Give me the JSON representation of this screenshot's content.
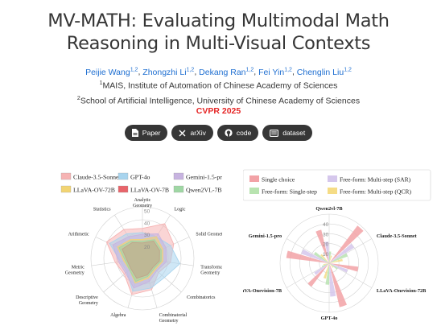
{
  "title": {
    "line1": "MV-MATH: Evaluating Multimodal Math",
    "line2": "Reasoning in Multi-Visual Contexts"
  },
  "authors": [
    {
      "name": "Peijie Wang",
      "sup": "1,2"
    },
    {
      "name": "Zhongzhi Li",
      "sup": "1,2"
    },
    {
      "name": "Dekang Ran",
      "sup": "1,2"
    },
    {
      "name": "Fei Yin",
      "sup": "1,2"
    },
    {
      "name": "Chenglin Liu",
      "sup": "1,2"
    }
  ],
  "affiliations": [
    {
      "sup": "1",
      "text": "MAIS, Institute of Automation of Chinese Academy of Sciences"
    },
    {
      "sup": "2",
      "text": "School of Artificial Intelligence, University of Chinese Academy of Sciences"
    }
  ],
  "venue": "CVPR 2025",
  "links": [
    {
      "label": "Paper",
      "icon": "pdf-icon"
    },
    {
      "label": "arXiv",
      "icon": "x-icon"
    },
    {
      "label": "code",
      "icon": "github-icon"
    },
    {
      "label": "dataset",
      "icon": "database-icon"
    }
  ],
  "colors": {
    "accent": "#1f6fd1",
    "venue": "#e52424",
    "button": "#363636"
  },
  "chart_data": [
    {
      "type": "radar",
      "legend": [
        {
          "name": "Claude-3.5-Sonnet",
          "color": "#f6b3b3"
        },
        {
          "name": "GPT-4o",
          "color": "#a8d4ee"
        },
        {
          "name": "Gemini-1.5-pro",
          "color": "#c7b3e0"
        },
        {
          "name": "LLaVA-OV-72B",
          "color": "#f2d472"
        },
        {
          "name": "LLaVA-OV-7B",
          "color": "#e8646a"
        },
        {
          "name": "Qwen2VL-7B",
          "color": "#9fd7a4"
        }
      ],
      "axes": [
        "Analytic Geometry",
        "Logic",
        "Solid Geometry",
        "Transformation Geometry",
        "Combinatorics",
        "Combinatorial Geometry",
        "Algebra",
        "Descriptive Geometry",
        "Metric Geometry",
        "Arithmetic",
        "Statistics"
      ],
      "rlabels": [
        "50",
        "40",
        "30",
        "20"
      ],
      "rmax": 60,
      "series": [
        {
          "name": "Claude-3.5-Sonnet",
          "values": [
            35,
            48,
            40,
            33,
            25,
            38,
            44,
            28,
            32,
            46,
            40
          ]
        },
        {
          "name": "GPT-4o",
          "values": [
            30,
            30,
            36,
            44,
            34,
            36,
            40,
            24,
            26,
            42,
            34
          ]
        },
        {
          "name": "Gemini-1.5-pro",
          "values": [
            28,
            34,
            30,
            28,
            22,
            28,
            36,
            26,
            28,
            38,
            30
          ]
        },
        {
          "name": "LLaVA-OV-72B",
          "values": [
            22,
            30,
            26,
            24,
            20,
            24,
            30,
            20,
            22,
            32,
            26
          ]
        },
        {
          "name": "LLaVA-OV-7B",
          "values": [
            18,
            24,
            22,
            20,
            16,
            20,
            24,
            18,
            18,
            26,
            22
          ]
        },
        {
          "name": "Qwen2VL-7B",
          "values": [
            20,
            26,
            24,
            22,
            18,
            22,
            28,
            20,
            20,
            30,
            24
          ]
        }
      ]
    },
    {
      "type": "polar-bar",
      "legend": [
        {
          "name": "Single choice",
          "color": "#f2a2a6"
        },
        {
          "name": "Free-form: Multi-step (SAR)",
          "color": "#d5c7ec"
        },
        {
          "name": "Free-form: Single-step",
          "color": "#b8e3b0"
        },
        {
          "name": "Free-form: Multi-step (QCR)",
          "color": "#f5dc86"
        }
      ],
      "categories": [
        "Qwen2vl-7B",
        "Claude-3.5-Sonnet",
        "LLaVA-Onevision-72B",
        "GPT-4o",
        "LLaVA-Onevision-7B",
        "Gemini-1.5-pro"
      ],
      "rlabels": [
        "40",
        "30",
        "20",
        "10"
      ],
      "rmax": 50,
      "series": [
        {
          "name": "Single choice",
          "values": [
            35,
            48,
            30,
            46,
            30,
            44
          ]
        },
        {
          "name": "Free-form: Multi-step (SAR)",
          "values": [
            22,
            30,
            20,
            34,
            18,
            30
          ]
        },
        {
          "name": "Free-form: Single-step",
          "values": [
            12,
            20,
            10,
            22,
            8,
            18
          ]
        },
        {
          "name": "Free-form: Multi-step (QCR)",
          "values": [
            8,
            14,
            6,
            16,
            6,
            12
          ]
        }
      ]
    }
  ]
}
